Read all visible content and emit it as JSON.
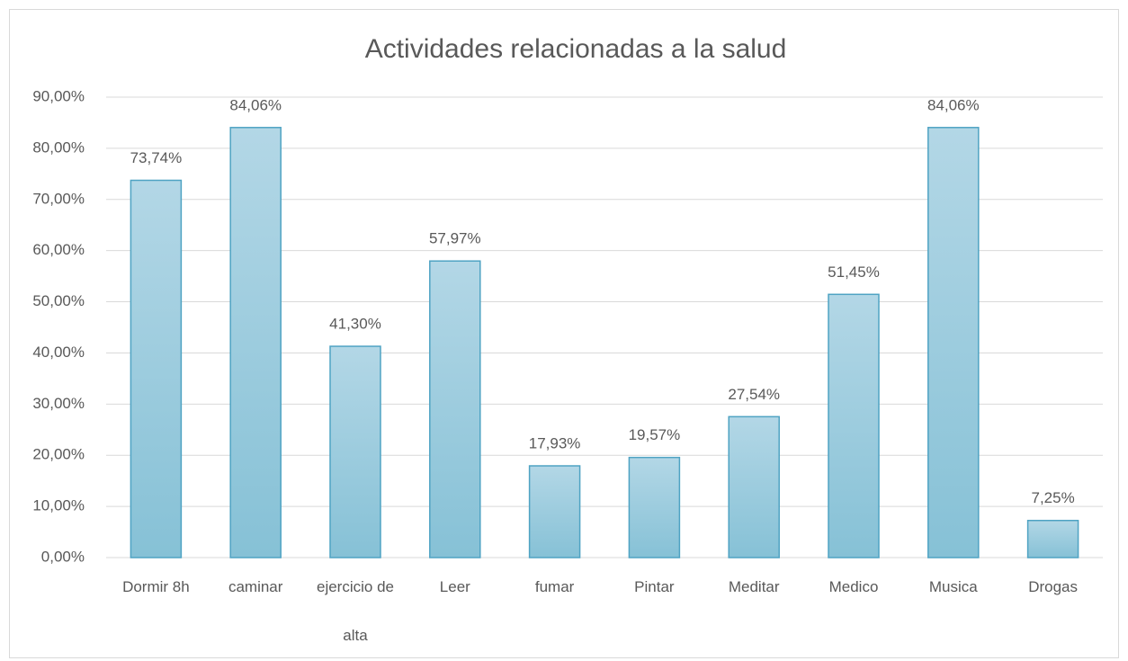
{
  "chart_data": {
    "type": "bar",
    "title": "Actividades relacionadas a la salud",
    "categories": [
      "Dormir 8h",
      "caminar",
      "ejercicio de alta",
      "Leer",
      "fumar",
      "Pintar",
      "Meditar",
      "Medico",
      "Musica",
      "Drogas"
    ],
    "values": [
      73.74,
      84.06,
      41.3,
      57.97,
      17.93,
      19.57,
      27.54,
      51.45,
      84.06,
      7.25
    ],
    "value_labels": [
      "73,74%",
      "84,06%",
      "41,30%",
      "57,97%",
      "17,93%",
      "19,57%",
      "27,54%",
      "51,45%",
      "84,06%",
      "7,25%"
    ],
    "color": "#9ccbde",
    "ylim": [
      0,
      90
    ],
    "yticks": [
      {
        "value": 0,
        "label": "0,00%"
      },
      {
        "value": 10,
        "label": "10,00%"
      },
      {
        "value": 20,
        "label": "20,00%"
      },
      {
        "value": 30,
        "label": "30,00%"
      },
      {
        "value": 40,
        "label": "40,00%"
      },
      {
        "value": 50,
        "label": "50,00%"
      },
      {
        "value": 60,
        "label": "60,00%"
      },
      {
        "value": 70,
        "label": "70,00%"
      },
      {
        "value": 80,
        "label": "80,00%"
      },
      {
        "value": 90,
        "label": "90,00%"
      }
    ],
    "grid": true
  }
}
